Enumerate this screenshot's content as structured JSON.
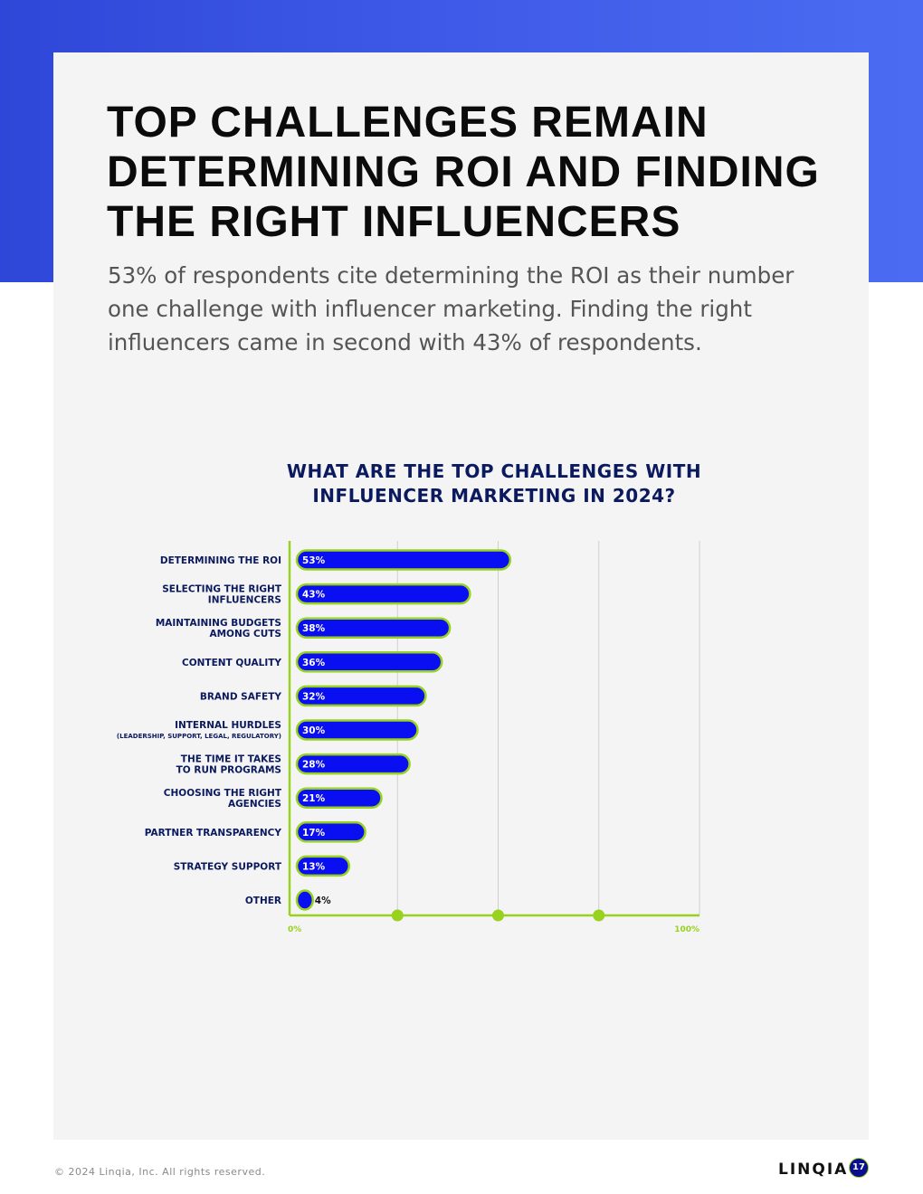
{
  "page": {
    "headline": "TOP CHALLENGES REMAIN DETERMINING ROI AND FINDING THE RIGHT INFLUENCERS",
    "intro": "53% of respondents cite determining the ROI as their number one challenge with influencer marketing. Finding the right influencers came in second with 43% of respondents."
  },
  "footer": {
    "copyright": "© 2024 Linqia, Inc. All rights reserved.",
    "logo": "LINQIA",
    "page_number": "17"
  },
  "colors": {
    "bar_fill": "#0a0ff2",
    "bar_outline": "#98d11e",
    "axis": "#98d11e",
    "label_text": "#0b1a5e",
    "grid": "#cfcfcf"
  },
  "chart_data": {
    "type": "bar",
    "orientation": "horizontal",
    "title": "WHAT ARE THE TOP CHALLENGES WITH INFLUENCER MARKETING IN 2024?",
    "categories": [
      {
        "label": "DETERMINING THE ROI",
        "sub": ""
      },
      {
        "label": "SELECTING THE RIGHT INFLUENCERS",
        "sub": ""
      },
      {
        "label": "MAINTAINING BUDGETS AMONG CUTS",
        "sub": ""
      },
      {
        "label": "CONTENT QUALITY",
        "sub": ""
      },
      {
        "label": "BRAND SAFETY",
        "sub": ""
      },
      {
        "label": "INTERNAL HURDLES",
        "sub": "(LEADERSHIP, SUPPORT, LEGAL, REGULATORY)"
      },
      {
        "label": "THE TIME IT TAKES TO RUN PROGRAMS",
        "sub": ""
      },
      {
        "label": "CHOOSING THE RIGHT AGENCIES",
        "sub": ""
      },
      {
        "label": "PARTNER TRANSPARENCY",
        "sub": ""
      },
      {
        "label": "STRATEGY SUPPORT",
        "sub": ""
      },
      {
        "label": "OTHER",
        "sub": ""
      }
    ],
    "values": [
      53,
      43,
      38,
      36,
      32,
      30,
      28,
      21,
      17,
      13,
      4
    ],
    "value_labels": [
      "53%",
      "43%",
      "38%",
      "36%",
      "32%",
      "30%",
      "28%",
      "21%",
      "17%",
      "13%",
      "4%"
    ],
    "xlim": [
      0,
      100
    ],
    "x_tick_labels": [
      "0%",
      "100%"
    ],
    "gridlines_at": [
      25,
      50,
      75,
      100
    ],
    "grid": true,
    "legend": "none"
  }
}
